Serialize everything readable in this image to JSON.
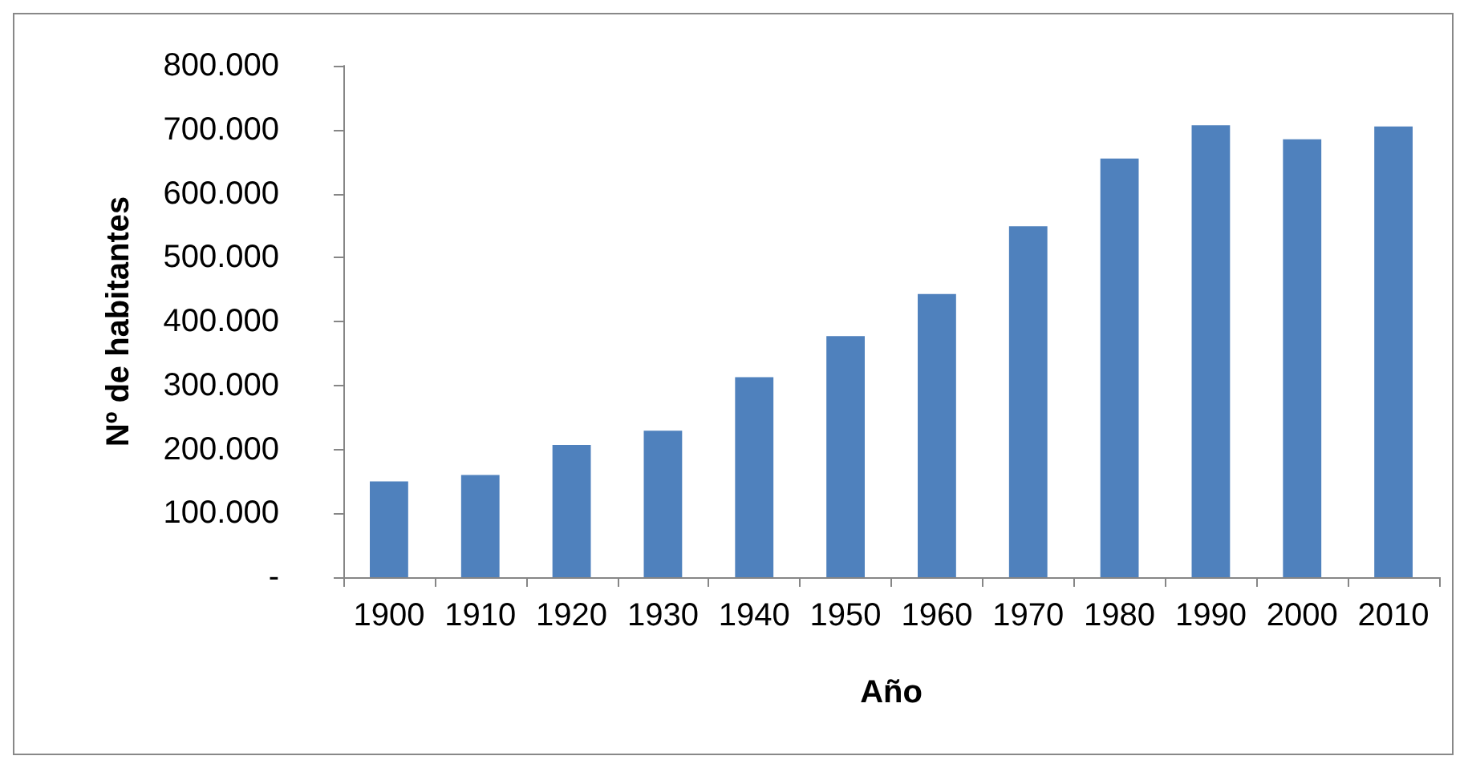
{
  "chart_data": {
    "type": "bar",
    "xlabel": "Año",
    "ylabel": "Nº de habitantes",
    "categories": [
      "1900",
      "1910",
      "1920",
      "1930",
      "1940",
      "1950",
      "1960",
      "1970",
      "1980",
      "1990",
      "2000",
      "2010"
    ],
    "values": [
      150000,
      160000,
      207000,
      229000,
      313000,
      377000,
      443000,
      549000,
      655000,
      707000,
      685000,
      705000
    ],
    "color": "#4f81bd",
    "ylim": [
      0,
      800000
    ],
    "yticks": [
      {
        "value": 0,
        "label": "-"
      },
      {
        "value": 100000,
        "label": "100.000"
      },
      {
        "value": 200000,
        "label": "200.000"
      },
      {
        "value": 300000,
        "label": "300.000"
      },
      {
        "value": 400000,
        "label": "400.000"
      },
      {
        "value": 500000,
        "label": "500.000"
      },
      {
        "value": 600000,
        "label": "600.000"
      },
      {
        "value": 700000,
        "label": "700.000"
      },
      {
        "value": 800000,
        "label": "800.000"
      }
    ],
    "grid": false
  }
}
